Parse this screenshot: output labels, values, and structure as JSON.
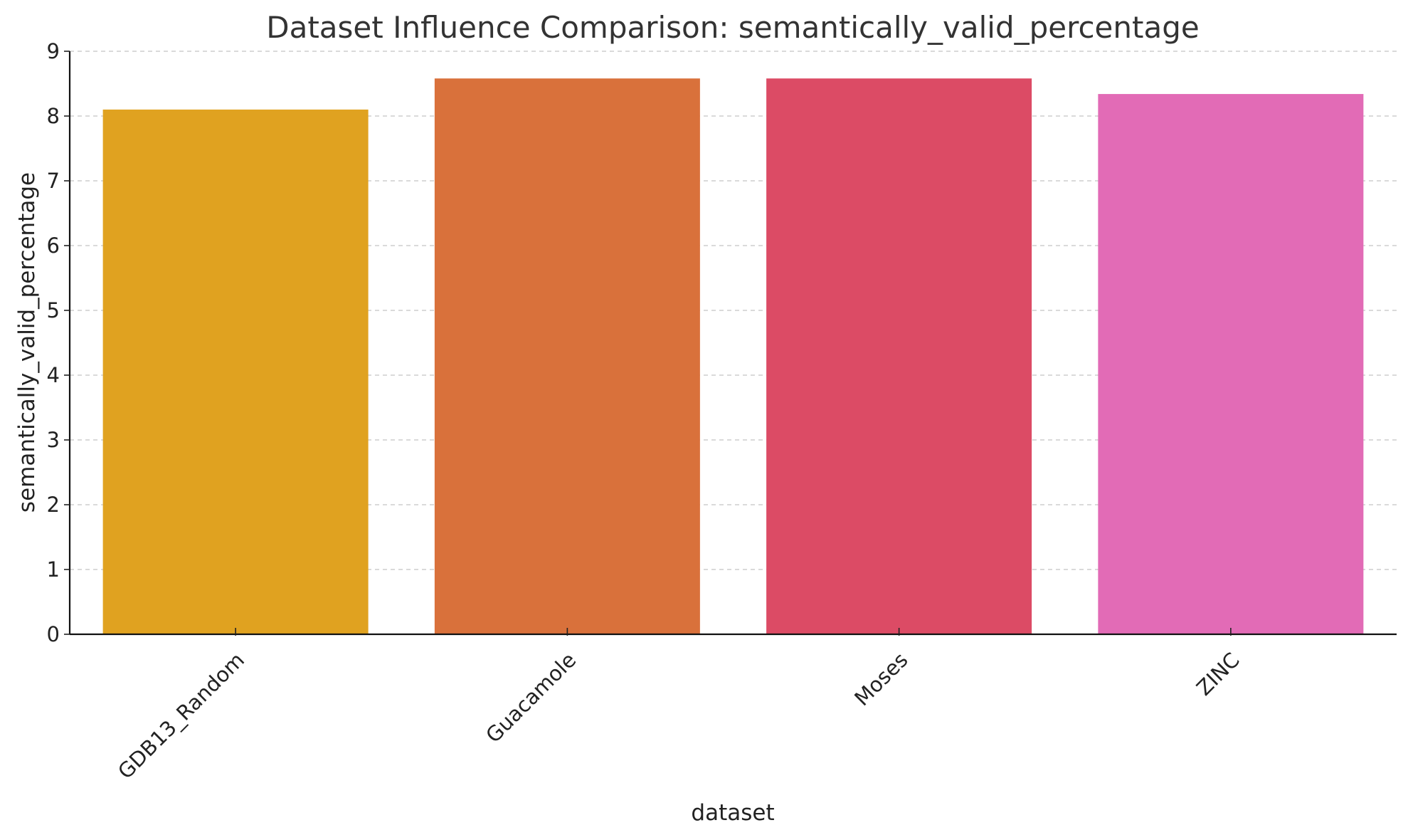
{
  "chart_data": {
    "type": "bar",
    "title": "Dataset Influence Comparison: semantically_valid_percentage",
    "xlabel": "dataset",
    "ylabel": "semantically_valid_percentage",
    "categories": [
      "GDB13_Random",
      "Guacamole",
      "Moses",
      "ZINC"
    ],
    "values": [
      8.1,
      8.58,
      8.58,
      8.34
    ],
    "colors": [
      "#e0a220",
      "#d9713b",
      "#dc4b65",
      "#e26bb6"
    ],
    "ylim": [
      0,
      9
    ],
    "yticks": [
      "0",
      "1",
      "2",
      "3",
      "4",
      "5",
      "6",
      "7",
      "8",
      "9"
    ],
    "grid": "y-dashed",
    "legend": "none"
  }
}
